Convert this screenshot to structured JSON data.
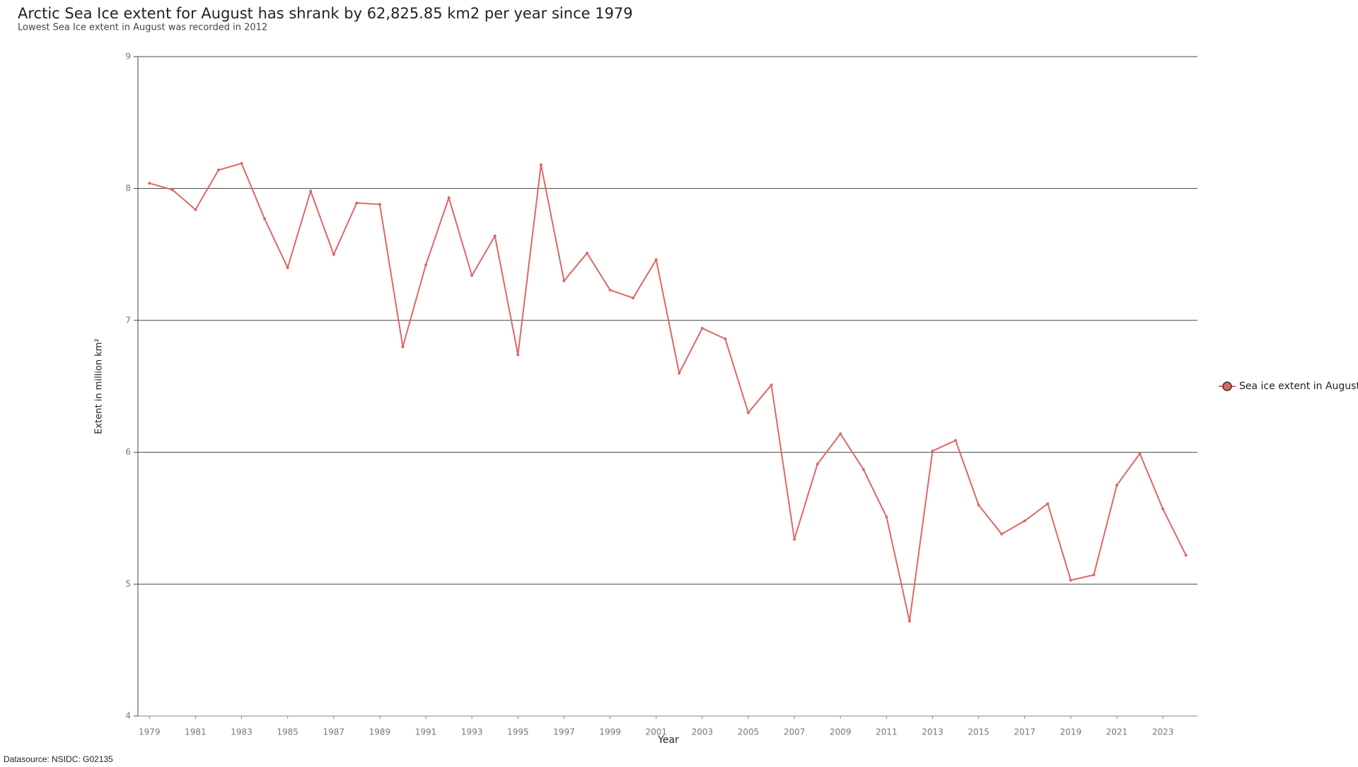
{
  "chart_data": {
    "type": "line",
    "title": "Arctic Sea Ice extent for August has shrank by 62,825.85 km2 per year since 1979",
    "subtitle": "Lowest Sea Ice extent in August was recorded in 2012",
    "x_label": "Year",
    "y_label": "Extent in million km²",
    "source": "Datasource: NSIDC: G02135",
    "x": [
      1979,
      1980,
      1981,
      1982,
      1983,
      1984,
      1985,
      1986,
      1987,
      1988,
      1989,
      1990,
      1991,
      1992,
      1993,
      1994,
      1995,
      1996,
      1997,
      1998,
      1999,
      2000,
      2001,
      2002,
      2003,
      2004,
      2005,
      2006,
      2007,
      2008,
      2009,
      2010,
      2011,
      2012,
      2013,
      2014,
      2015,
      2016,
      2017,
      2018,
      2019,
      2020,
      2021,
      2022,
      2023,
      2024
    ],
    "series": [
      {
        "name": "Sea ice extent in August",
        "color": "#e06666",
        "values": [
          8.04,
          7.99,
          7.84,
          8.14,
          8.19,
          7.77,
          7.4,
          7.98,
          7.5,
          7.89,
          7.88,
          6.8,
          7.42,
          7.93,
          7.34,
          7.64,
          6.74,
          8.18,
          7.3,
          7.51,
          7.23,
          7.17,
          7.46,
          6.6,
          6.94,
          6.86,
          6.3,
          6.51,
          5.34,
          5.91,
          6.14,
          5.87,
          5.51,
          4.72,
          6.01,
          6.09,
          5.6,
          5.38,
          5.48,
          5.61,
          5.03,
          5.07,
          5.75,
          5.99,
          5.57,
          5.22
        ]
      }
    ],
    "xlim": [
      1978.5,
      2024.5
    ],
    "xticks": [
      1979,
      1981,
      1983,
      1985,
      1987,
      1989,
      1991,
      1993,
      1995,
      1997,
      1999,
      2001,
      2003,
      2005,
      2007,
      2009,
      2011,
      2013,
      2015,
      2017,
      2019,
      2021,
      2023
    ],
    "ylim": [
      4,
      9
    ],
    "yticks": [
      4,
      5,
      6,
      7,
      8,
      9
    ],
    "grid": true,
    "legend": "right"
  }
}
